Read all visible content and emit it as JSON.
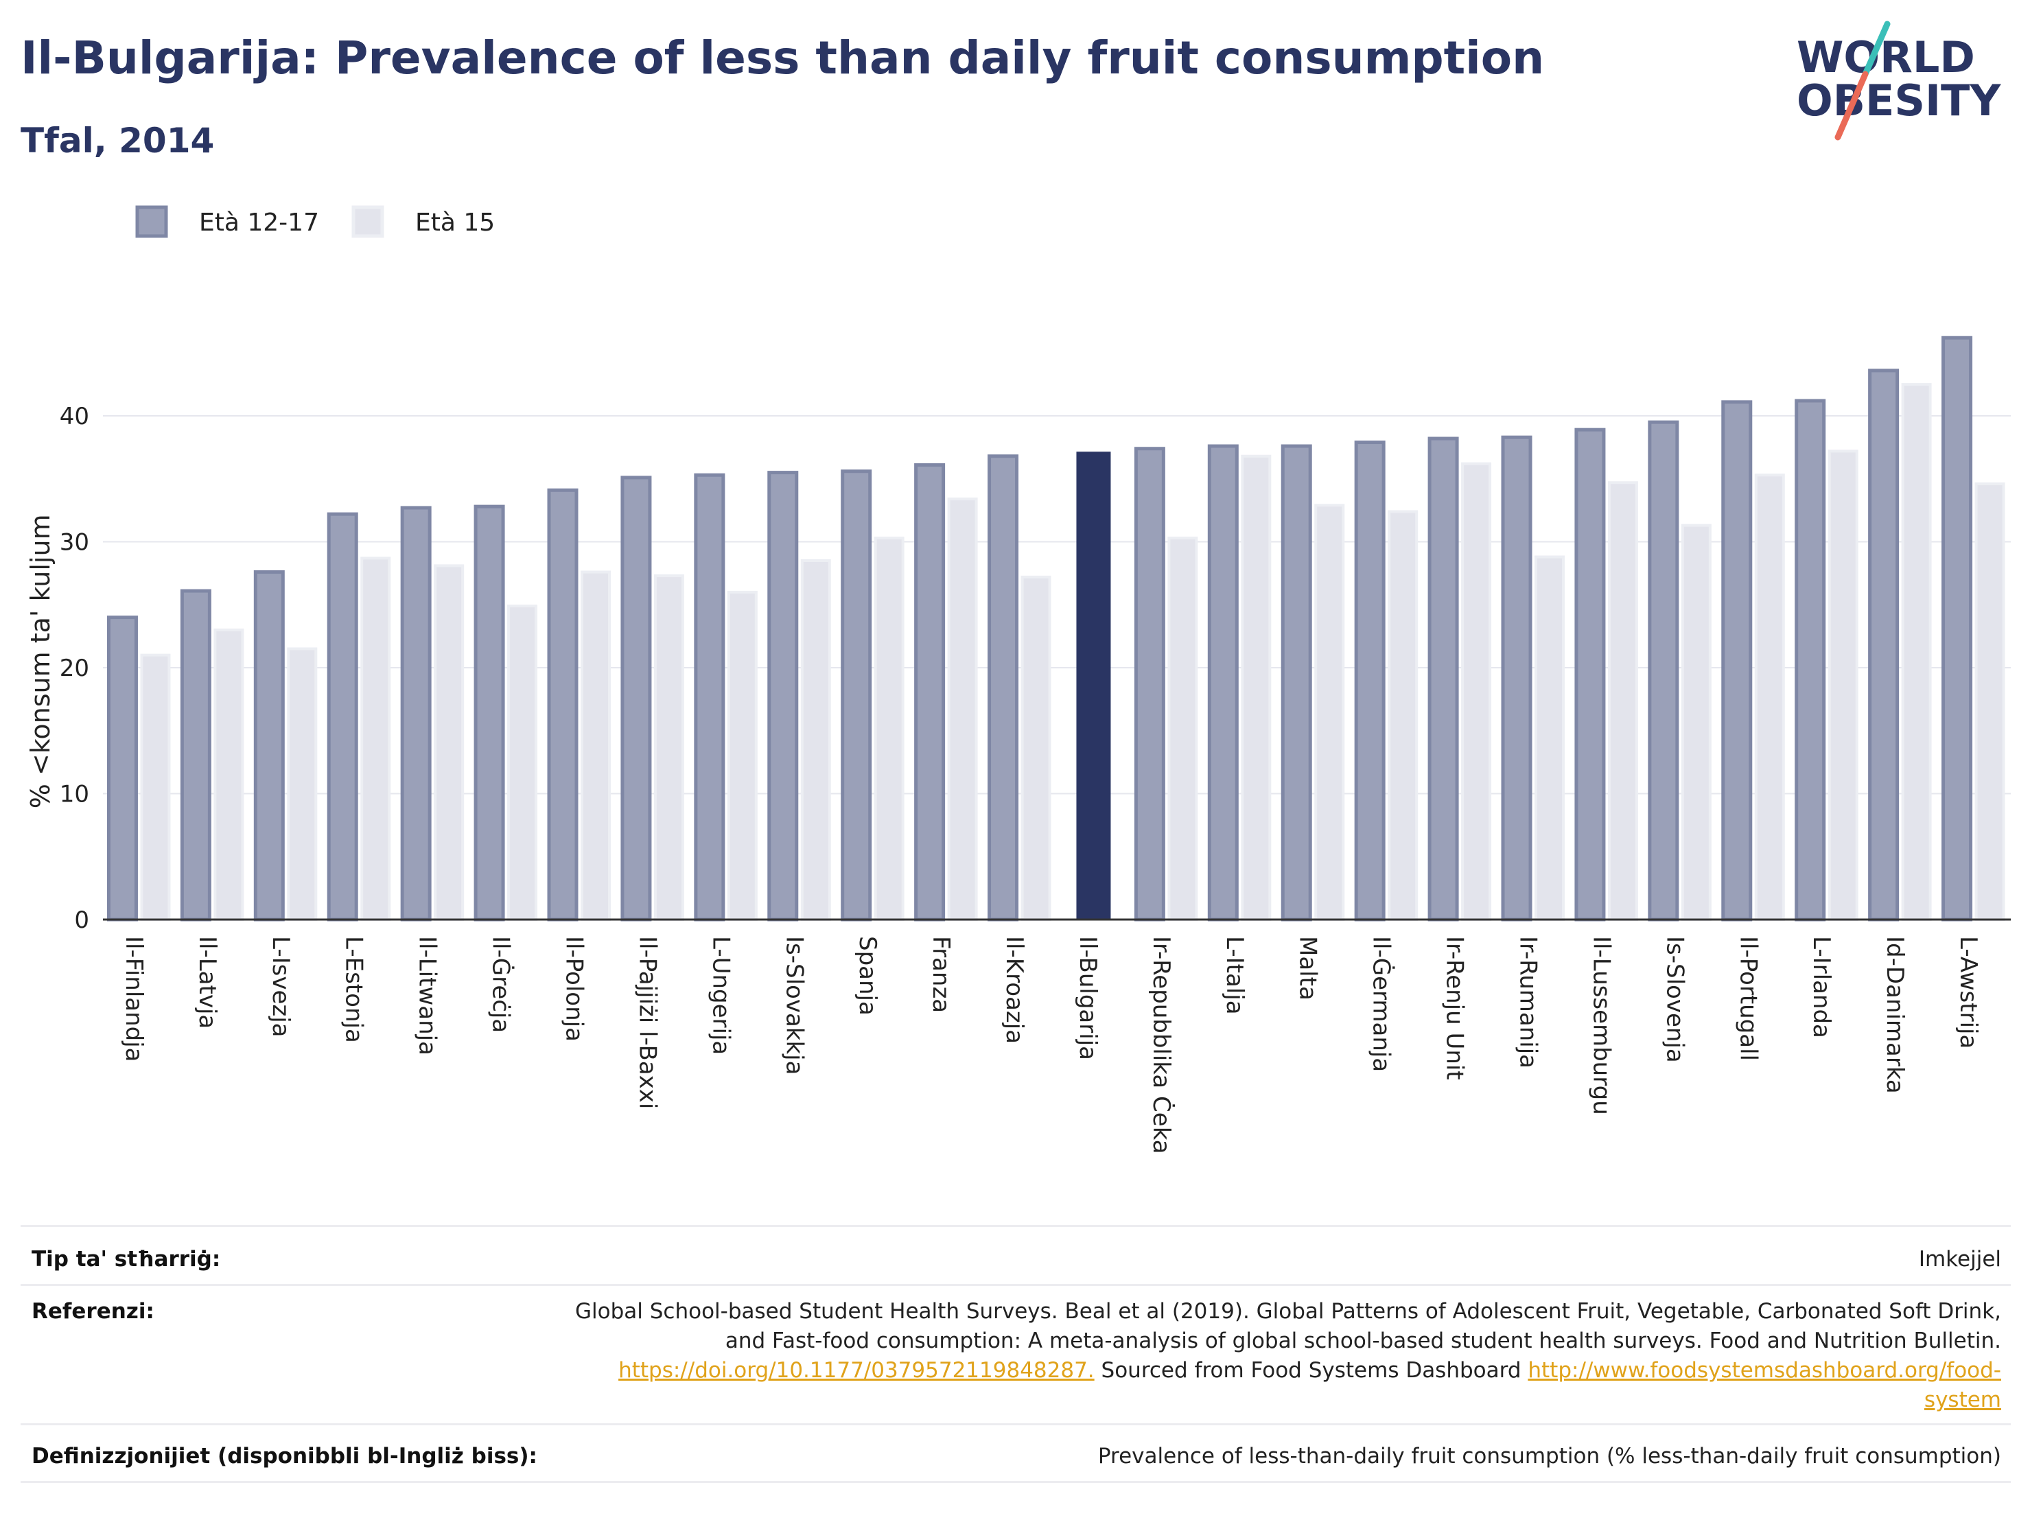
{
  "header": {
    "title": "Il-Bulgarija: Prevalence of less than daily fruit consumption",
    "subtitle": "Tfal, 2014"
  },
  "logo": {
    "line1": "WORLD",
    "line2": "OBESITY",
    "colors": {
      "text": "#2a3563",
      "slash_teal": "#3bbfb8",
      "slash_coral": "#ea6a57"
    }
  },
  "chart_data": {
    "type": "bar",
    "title": "Il-Bulgarija: Prevalence of less than daily fruit consumption",
    "subtitle": "Tfal, 2014",
    "ylabel": "% <konsum ta' kuljum",
    "xlabel": "",
    "ylim": [
      0,
      47
    ],
    "yticks": [
      0,
      10,
      20,
      30,
      40
    ],
    "grid": true,
    "legend_position": "top-left",
    "highlight_category": "Il-Bulgarija",
    "colors": {
      "series1": "#9aa0b8",
      "series1_edge": "#7f87a5",
      "series2": "#e3e4ec",
      "highlight": "#2a3563"
    },
    "categories": [
      "Il-Finlandja",
      "Il-Latvja",
      "L-Isvezja",
      "L-Estonja",
      "Il-Litwanja",
      "Il-Ġreċja",
      "Il-Polonja",
      "Il-Pajjiżi l-Baxxi",
      "L-Ungerija",
      "Is-Slovakkja",
      "Spanja",
      "Franza",
      "Il-Kroazja",
      "Il-Bulgarija",
      "Ir-Repubblika Ċeka",
      "L-Italja",
      "Malta",
      "Il-Ġermanja",
      "Ir-Renju Unit",
      "Ir-Rumanija",
      "Il-Lussemburgu",
      "Is-Slovenja",
      "Il-Portugall",
      "L-Irlanda",
      "Id-Danimarka",
      "L-Awstrija"
    ],
    "series": [
      {
        "name": "Età 12-17",
        "values": [
          24.0,
          26.1,
          27.6,
          32.2,
          32.7,
          32.8,
          34.1,
          35.1,
          35.3,
          35.5,
          35.6,
          36.1,
          36.8,
          37.1,
          37.4,
          37.6,
          37.6,
          37.9,
          38.2,
          38.3,
          38.9,
          39.5,
          41.1,
          41.2,
          43.6,
          46.2
        ]
      },
      {
        "name": "Età 15",
        "values": [
          21.0,
          23.0,
          21.5,
          28.7,
          28.1,
          24.9,
          27.6,
          27.3,
          26.0,
          28.5,
          30.3,
          33.4,
          27.2,
          null,
          30.3,
          36.8,
          32.9,
          32.4,
          36.2,
          28.8,
          34.7,
          31.3,
          35.3,
          37.2,
          42.5,
          34.6
        ]
      }
    ]
  },
  "info": {
    "source_type_label": "Tip ta' stħarriġ:",
    "source_type_value": "Imkejjel",
    "references_label": "Referenzi:",
    "references_line1": "Global School-based Student Health Surveys. Beal et al (2019). Global Patterns of Adolescent Fruit, Vegetable, Carbonated Soft Drink,",
    "references_line2": "and Fast-food consumption: A meta-analysis of global school-based student health surveys. Food and Nutrition Bulletin.",
    "references_link1": "https://doi.org/10.1177/0379572119848287.",
    "references_mid": " Sourced from Food Systems Dashboard ",
    "references_link2a": "http://www.foodsystemsdashboard.org/food-",
    "references_link2b": "system",
    "definitions_label": "Definizzjonijiet (disponibbli bl-Ingliż biss):",
    "definitions_value": "Prevalence of less-than-daily fruit consumption (% less-than-daily fruit consumption)"
  }
}
